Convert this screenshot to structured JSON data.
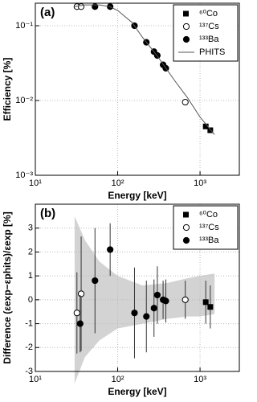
{
  "chart_data": [
    {
      "type": "scatter",
      "title": "(a)",
      "xlabel": "Energy [keV]",
      "ylabel": "Efficiency [%]",
      "xlog": true,
      "ylog": true,
      "grid": true,
      "legend": "upper right",
      "xlim": [
        10,
        3000
      ],
      "xticks": [
        {
          "value": 10,
          "label": "10¹"
        },
        {
          "value": 100,
          "label": "10²"
        },
        {
          "value": 1000,
          "label": "10³"
        }
      ],
      "ylim": [
        0.001,
        0.2
      ],
      "yticks": [
        {
          "value": 0.001,
          "label": "10⁻³"
        },
        {
          "value": 0.01,
          "label": "10⁻²"
        },
        {
          "value": 0.1,
          "label": "10⁻¹"
        }
      ],
      "series": [
        {
          "name": "⁶⁰Co",
          "marker": "square",
          "color": "#000000",
          "x": [
            1173,
            1332
          ],
          "values": [
            0.0045,
            0.004
          ]
        },
        {
          "name": "¹³⁷Cs",
          "marker": "circle-open",
          "color": "#000000",
          "x": [
            32,
            36,
            662
          ],
          "values": [
            0.18,
            0.18,
            0.0095
          ]
        },
        {
          "name": "¹³³Ba",
          "marker": "circle",
          "color": "#000000",
          "x": [
            53,
            81,
            160,
            223,
            276,
            303,
            356,
            384
          ],
          "values": [
            0.18,
            0.18,
            0.1,
            0.06,
            0.045,
            0.04,
            0.03,
            0.027
          ]
        },
        {
          "name": "PHITS",
          "type": "line",
          "color": "#555555",
          "x": [
            30,
            40,
            60,
            80,
            100,
            150,
            200,
            300,
            500,
            700,
            1000,
            1500
          ],
          "values": [
            0.18,
            0.19,
            0.19,
            0.18,
            0.16,
            0.11,
            0.07,
            0.04,
            0.018,
            0.011,
            0.006,
            0.0035
          ]
        }
      ]
    },
    {
      "type": "scatter",
      "title": "(b)",
      "xlabel": "Energy [keV]",
      "ylabel": "Difference (εexp−εphits)/εexp [%]",
      "xlog": true,
      "ylog": false,
      "grid": true,
      "legend": "upper right",
      "xlim": [
        10,
        3000
      ],
      "xticks": [
        {
          "value": 10,
          "label": "10¹"
        },
        {
          "value": 100,
          "label": "10²"
        },
        {
          "value": 1000,
          "label": "10³"
        }
      ],
      "ylim": [
        -3,
        4
      ],
      "yticks": [
        -3,
        -2,
        -1,
        0,
        1,
        2,
        3
      ],
      "band": {
        "color": "#d3d3d3",
        "x": [
          30,
          40,
          60,
          100,
          200,
          400,
          700,
          1000,
          1500
        ],
        "upper": [
          3.5,
          2.5,
          1.6,
          1.0,
          0.6,
          0.7,
          0.9,
          1.0,
          1.1
        ],
        "lower": [
          -3.5,
          -2.4,
          -1.7,
          -1.2,
          -1.0,
          -0.8,
          -0.7,
          -0.7,
          -0.6
        ]
      },
      "series": [
        {
          "name": "⁶⁰Co",
          "marker": "square",
          "color": "#000000",
          "x": [
            1173,
            1332
          ],
          "values": [
            -0.1,
            -0.3
          ],
          "errors": [
            0.9,
            0.9
          ]
        },
        {
          "name": "¹³⁷Cs",
          "marker": "circle-open",
          "color": "#000000",
          "x": [
            32,
            36,
            662
          ],
          "values": [
            -0.55,
            0.25,
            0.0
          ],
          "errors": [
            1.7,
            2.4,
            0.8
          ]
        },
        {
          "name": "¹³³Ba",
          "marker": "circle",
          "color": "#000000",
          "x": [
            35,
            53,
            81,
            160,
            223,
            276,
            303,
            356,
            384
          ],
          "values": [
            -1.0,
            0.8,
            2.1,
            -0.55,
            -0.7,
            -0.35,
            0.2,
            0.0,
            -0.05
          ],
          "errors": [
            1.2,
            2.2,
            1.1,
            1.9,
            1.5,
            1.2,
            1.2,
            0.8,
            0.9
          ]
        }
      ]
    }
  ]
}
